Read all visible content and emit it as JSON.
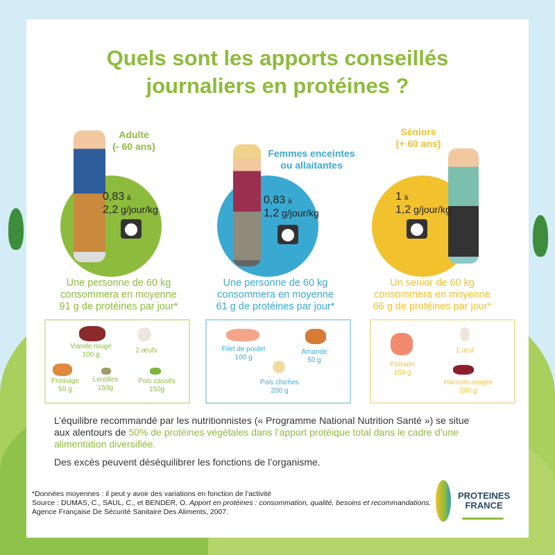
{
  "title_line1": "Quels sont les apports conseillés",
  "title_line2": "journaliers en protéines ?",
  "groups": [
    {
      "label1": "Adulte",
      "label2": "(- 60 ans)",
      "dose_low": "0,83",
      "dose_a": "à",
      "dose_high": "2,2",
      "unit": "g/jour/kg",
      "summary": [
        "Une personne de 60 kg",
        "consommera en moyenne",
        "91 g de protéines par jour*"
      ],
      "color": "#8dbb3c",
      "foods": [
        {
          "name": "Viande rouge",
          "qty": "100 g"
        },
        {
          "name": "2 œufs",
          "qty": ""
        },
        {
          "name": "Fromage",
          "qty": "50 g"
        },
        {
          "name": "Lentilles",
          "qty": "150g"
        },
        {
          "name": "Pois cassés",
          "qty": "150g"
        }
      ]
    },
    {
      "label1": "Femmes enceintes",
      "label2": "ou allaitantes",
      "dose_low": "0,83",
      "dose_a": "à",
      "dose_high": "1,2",
      "unit": "g/jour/kg",
      "summary": [
        "Une personne de 60 kg",
        "consommera en moyenne",
        "61 g de protéines par jour*"
      ],
      "color": "#3aa9d2",
      "foods": [
        {
          "name": "Filet de poulet",
          "qty": "100 g"
        },
        {
          "name": "Amande",
          "qty": "50 g"
        },
        {
          "name": "Pois chiches",
          "qty": "200 g"
        }
      ]
    },
    {
      "label1": "Séniors",
      "label2": "(+ 60 ans)",
      "dose_low": "1",
      "dose_a": "à",
      "dose_high": "1,2",
      "unit": "g/jour/kg",
      "summary": [
        "Un senior de 60 kg",
        "consommera en moyenne",
        "66 g de protéines par jour*"
      ],
      "color": "#f2c12e",
      "foods": [
        {
          "name": "1 œuf",
          "qty": ""
        },
        {
          "name": "Poisson",
          "qty": "150 g"
        },
        {
          "name": "Haricots rouges",
          "qty": "200 g"
        }
      ]
    }
  ],
  "para1_a": "L’équilibre recommandé par les nutritionnistes (« Programme National Nutrition Santé »)",
  "para1_b": "se situe aux alentours de ",
  "para1_hl": "50% de protéines végétales dans l’apport protéique total dans le cadre d’une alimentation diversifiée.",
  "para2": "Des excès peuvent déséquilibrer les fonctions de l’organisme.",
  "foot1": "*Données moyennes : il peut y avoir des variations en fonction de l’activité",
  "foot2_a": "Source : DUMAS, C., SAUL, C., et BENDER, O. ",
  "foot2_i": "Apport en protéines : consommation, qualité, besoins et recommandations.",
  "foot2_b": " Agence Française De Sécurité Sanitaire Des Aliments, 2007.",
  "logo_line1": "PROTEINES",
  "logo_line2": "FRANCE"
}
